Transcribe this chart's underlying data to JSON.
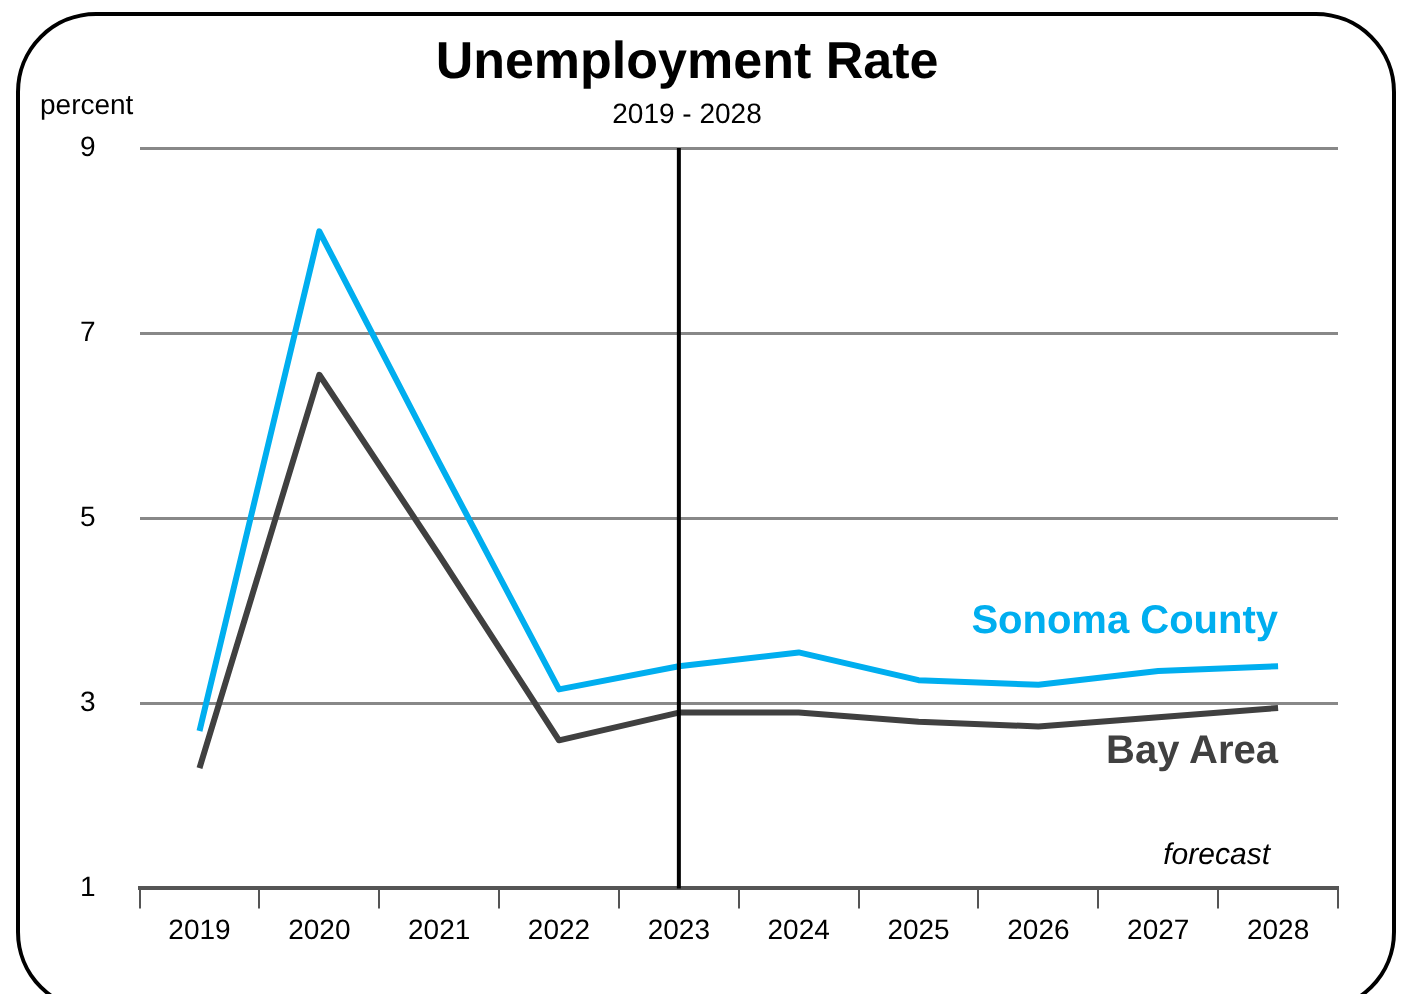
{
  "chart_data": {
    "type": "line",
    "title": "Unemployment Rate",
    "subtitle": "2019 - 2028",
    "ylabel": "percent",
    "categories": [
      "2019",
      "2020",
      "2021",
      "2022",
      "2023",
      "2024",
      "2025",
      "2026",
      "2027",
      "2028"
    ],
    "series": [
      {
        "name": "Sonoma County",
        "color": "#00aeef",
        "values": [
          2.7,
          8.1,
          5.6,
          3.15,
          3.4,
          3.55,
          3.25,
          3.2,
          3.35,
          3.4
        ]
      },
      {
        "name": "Bay Area",
        "color": "#404040",
        "values": [
          2.3,
          6.55,
          4.6,
          2.6,
          2.9,
          2.9,
          2.8,
          2.75,
          2.85,
          2.95
        ]
      }
    ],
    "ylim": [
      1,
      9
    ],
    "yticks": [
      1,
      3,
      5,
      7,
      9
    ],
    "grid": "y",
    "legend": false,
    "marker": "none",
    "line_style": "solid",
    "ref_lines": [
      {
        "axis": "x",
        "value": "2023",
        "color": "#000000"
      }
    ],
    "annotations": [
      "forecast"
    ]
  }
}
